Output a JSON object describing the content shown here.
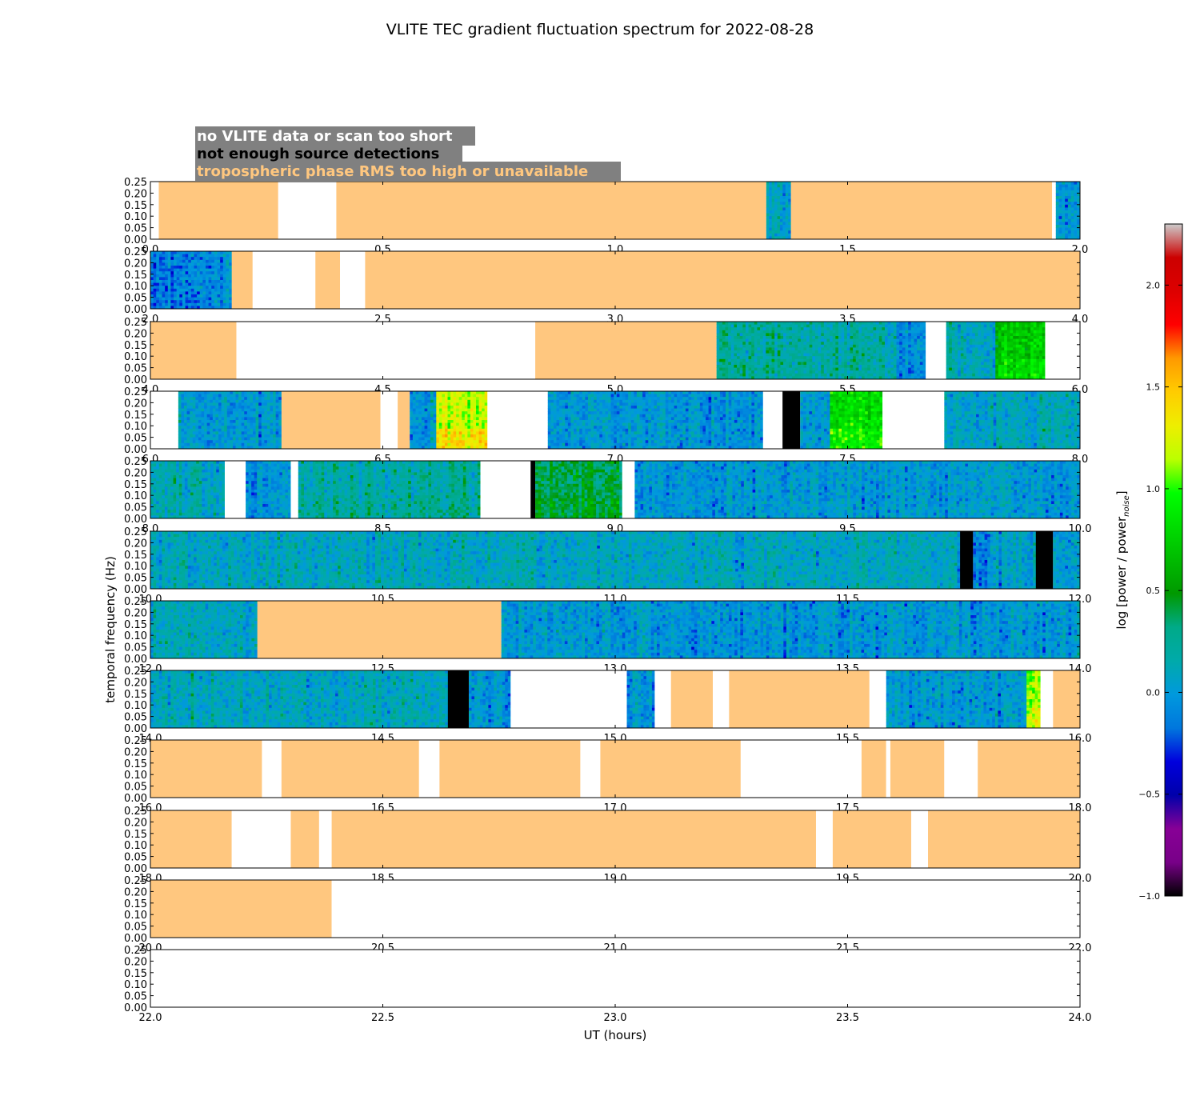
{
  "chart_data": {
    "type": "heatmap",
    "title": "VLITE TEC gradient fluctuation spectrum for 2022-08-28",
    "xlabel": "UT (hours)",
    "ylabel": "temporal frequency (Hz)",
    "ylim": [
      0.0,
      0.25
    ],
    "ytick_labels": [
      "0.00",
      "0.05",
      "0.10",
      "0.15",
      "0.20",
      "0.25"
    ],
    "colorbar": {
      "label": "log [power / power",
      "label_subscript": "noise",
      "label_close": "]",
      "range": [
        -1.0,
        2.3
      ],
      "ticks": [
        -1.0,
        -0.5,
        0.0,
        0.5,
        1.0,
        1.5,
        2.0
      ],
      "tick_labels": [
        "−1.0",
        "−0.5",
        "0.0",
        "0.5",
        "1.0",
        "1.5",
        "2.0"
      ],
      "colormap": "nipy_spectral"
    },
    "legend": {
      "placement": "top-left",
      "background": "#808080",
      "entries": [
        {
          "text": "no VLITE data or scan too short",
          "color": "#ffffff",
          "meaning": "no_data"
        },
        {
          "text": "not enough source detections",
          "color": "#000000",
          "meaning": "few_detections"
        },
        {
          "text": "tropospheric phase RMS too high or unavailable",
          "color": "#ffc77f",
          "meaning": "tropo"
        }
      ]
    },
    "panels": [
      {
        "xlim": [
          0.0,
          2.0
        ],
        "xtick_labels": [
          "0.0",
          "0.5",
          "1.0",
          "1.5",
          "2.0"
        ],
        "segments": [
          {
            "start": 0.0,
            "end": 0.018,
            "status": "no_data"
          },
          {
            "start": 0.018,
            "end": 0.275,
            "status": "tropo"
          },
          {
            "start": 0.275,
            "end": 0.4,
            "status": "no_data"
          },
          {
            "start": 0.4,
            "end": 1.325,
            "status": "tropo"
          },
          {
            "start": 1.325,
            "end": 1.378,
            "status": "data",
            "level": 0.1
          },
          {
            "start": 1.378,
            "end": 1.94,
            "status": "tropo"
          },
          {
            "start": 1.94,
            "end": 1.948,
            "status": "no_data"
          },
          {
            "start": 1.948,
            "end": 2.0,
            "status": "data",
            "level": 0.0
          }
        ]
      },
      {
        "xlim": [
          2.0,
          4.0
        ],
        "xtick_labels": [
          "2.0",
          "2.5",
          "3.0",
          "3.5",
          "4.0"
        ],
        "segments": [
          {
            "start": 2.0,
            "end": 2.175,
            "status": "data",
            "level": -0.1
          },
          {
            "start": 2.175,
            "end": 2.22,
            "status": "tropo"
          },
          {
            "start": 2.22,
            "end": 2.355,
            "status": "no_data"
          },
          {
            "start": 2.355,
            "end": 2.408,
            "status": "tropo"
          },
          {
            "start": 2.408,
            "end": 2.462,
            "status": "no_data"
          },
          {
            "start": 2.462,
            "end": 4.0,
            "status": "tropo"
          }
        ]
      },
      {
        "xlim": [
          4.0,
          6.0
        ],
        "xtick_labels": [
          "4.0",
          "4.5",
          "5.0",
          "5.5",
          "6.0"
        ],
        "segments": [
          {
            "start": 4.0,
            "end": 4.185,
            "status": "tropo"
          },
          {
            "start": 4.185,
            "end": 4.828,
            "status": "no_data"
          },
          {
            "start": 4.828,
            "end": 5.218,
            "status": "tropo"
          },
          {
            "start": 5.218,
            "end": 5.605,
            "status": "data",
            "level": 0.2
          },
          {
            "start": 5.605,
            "end": 5.668,
            "status": "data",
            "level": -0.1
          },
          {
            "start": 5.668,
            "end": 5.712,
            "status": "no_data"
          },
          {
            "start": 5.712,
            "end": 5.818,
            "status": "data",
            "level": 0.1
          },
          {
            "start": 5.818,
            "end": 5.925,
            "status": "data",
            "level": 0.7
          },
          {
            "start": 5.925,
            "end": 6.0,
            "status": "no_data"
          }
        ]
      },
      {
        "xlim": [
          6.0,
          8.0
        ],
        "xtick_labels": [
          "6.0",
          "6.5",
          "7.0",
          "7.5",
          "8.0"
        ],
        "segments": [
          {
            "start": 6.0,
            "end": 6.06,
            "status": "no_data"
          },
          {
            "start": 6.06,
            "end": 6.282,
            "status": "data",
            "level": 0.0
          },
          {
            "start": 6.282,
            "end": 6.495,
            "status": "tropo"
          },
          {
            "start": 6.495,
            "end": 6.532,
            "status": "no_data"
          },
          {
            "start": 6.532,
            "end": 6.558,
            "status": "tropo"
          },
          {
            "start": 6.558,
            "end": 6.615,
            "status": "data",
            "level": 0.0
          },
          {
            "start": 6.615,
            "end": 6.725,
            "status": "data",
            "level": 1.2
          },
          {
            "start": 6.725,
            "end": 6.855,
            "status": "no_data"
          },
          {
            "start": 6.855,
            "end": 7.318,
            "status": "data",
            "level": 0.0
          },
          {
            "start": 7.318,
            "end": 7.36,
            "status": "no_data"
          },
          {
            "start": 7.36,
            "end": 7.398,
            "status": "few_detections"
          },
          {
            "start": 7.398,
            "end": 7.462,
            "status": "data",
            "level": 0.0
          },
          {
            "start": 7.462,
            "end": 7.575,
            "status": "data",
            "level": 0.8
          },
          {
            "start": 7.575,
            "end": 7.708,
            "status": "no_data"
          },
          {
            "start": 7.708,
            "end": 8.0,
            "status": "data",
            "level": 0.1
          }
        ]
      },
      {
        "xlim": [
          8.0,
          10.0
        ],
        "xtick_labels": [
          "8.0",
          "8.5",
          "9.0",
          "9.5",
          "10.0"
        ],
        "segments": [
          {
            "start": 8.0,
            "end": 8.16,
            "status": "data",
            "level": 0.1
          },
          {
            "start": 8.16,
            "end": 8.205,
            "status": "no_data"
          },
          {
            "start": 8.205,
            "end": 8.302,
            "status": "data",
            "level": 0.0
          },
          {
            "start": 8.302,
            "end": 8.318,
            "status": "no_data"
          },
          {
            "start": 8.318,
            "end": 8.71,
            "status": "data",
            "level": 0.2
          },
          {
            "start": 8.71,
            "end": 8.818,
            "status": "no_data"
          },
          {
            "start": 8.818,
            "end": 8.828,
            "status": "few_detections"
          },
          {
            "start": 8.828,
            "end": 9.015,
            "status": "data",
            "level": 0.4
          },
          {
            "start": 9.015,
            "end": 9.042,
            "status": "no_data"
          },
          {
            "start": 9.042,
            "end": 10.0,
            "status": "data",
            "level": 0.0
          }
        ]
      },
      {
        "xlim": [
          10.0,
          12.0
        ],
        "xtick_labels": [
          "10.0",
          "10.5",
          "11.0",
          "11.5",
          "12.0"
        ],
        "segments": [
          {
            "start": 10.0,
            "end": 11.742,
            "status": "data",
            "level": 0.1
          },
          {
            "start": 11.742,
            "end": 11.77,
            "status": "few_detections"
          },
          {
            "start": 11.77,
            "end": 11.905,
            "status": "data",
            "level": 0.0
          },
          {
            "start": 11.905,
            "end": 11.942,
            "status": "few_detections"
          },
          {
            "start": 11.942,
            "end": 12.0,
            "status": "data",
            "level": 0.0
          }
        ]
      },
      {
        "xlim": [
          12.0,
          14.0
        ],
        "xtick_labels": [
          "12.0",
          "12.5",
          "13.0",
          "13.5",
          "14.0"
        ],
        "segments": [
          {
            "start": 12.0,
            "end": 12.23,
            "status": "data",
            "level": 0.1
          },
          {
            "start": 12.23,
            "end": 12.755,
            "status": "tropo"
          },
          {
            "start": 12.755,
            "end": 14.0,
            "status": "data",
            "level": 0.0
          }
        ]
      },
      {
        "xlim": [
          14.0,
          16.0
        ],
        "xtick_labels": [
          "14.0",
          "14.5",
          "15.0",
          "15.5",
          "16.0"
        ],
        "segments": [
          {
            "start": 14.0,
            "end": 14.64,
            "status": "data",
            "level": 0.1
          },
          {
            "start": 14.64,
            "end": 14.685,
            "status": "few_detections"
          },
          {
            "start": 14.685,
            "end": 14.775,
            "status": "data",
            "level": 0.0
          },
          {
            "start": 14.775,
            "end": 15.025,
            "status": "no_data"
          },
          {
            "start": 15.025,
            "end": 15.085,
            "status": "data",
            "level": 0.0
          },
          {
            "start": 15.085,
            "end": 15.12,
            "status": "no_data"
          },
          {
            "start": 15.12,
            "end": 15.21,
            "status": "tropo"
          },
          {
            "start": 15.21,
            "end": 15.245,
            "status": "no_data"
          },
          {
            "start": 15.245,
            "end": 15.547,
            "status": "tropo"
          },
          {
            "start": 15.547,
            "end": 15.583,
            "status": "no_data"
          },
          {
            "start": 15.583,
            "end": 15.885,
            "status": "data",
            "level": 0.0
          },
          {
            "start": 15.885,
            "end": 15.915,
            "status": "data",
            "level": 1.1
          },
          {
            "start": 15.915,
            "end": 15.942,
            "status": "no_data"
          },
          {
            "start": 15.942,
            "end": 16.0,
            "status": "tropo"
          }
        ]
      },
      {
        "xlim": [
          16.0,
          18.0
        ],
        "xtick_labels": [
          "16.0",
          "16.5",
          "17.0",
          "17.5",
          "18.0"
        ],
        "segments": [
          {
            "start": 16.0,
            "end": 16.24,
            "status": "tropo"
          },
          {
            "start": 16.24,
            "end": 16.282,
            "status": "no_data"
          },
          {
            "start": 16.282,
            "end": 16.578,
            "status": "tropo"
          },
          {
            "start": 16.578,
            "end": 16.622,
            "status": "no_data"
          },
          {
            "start": 16.622,
            "end": 16.925,
            "status": "tropo"
          },
          {
            "start": 16.925,
            "end": 16.968,
            "status": "no_data"
          },
          {
            "start": 16.968,
            "end": 17.27,
            "status": "tropo"
          },
          {
            "start": 17.27,
            "end": 17.53,
            "status": "no_data"
          },
          {
            "start": 17.53,
            "end": 17.583,
            "status": "tropo"
          },
          {
            "start": 17.583,
            "end": 17.592,
            "status": "no_data"
          },
          {
            "start": 17.592,
            "end": 17.708,
            "status": "tropo"
          },
          {
            "start": 17.708,
            "end": 17.78,
            "status": "no_data"
          },
          {
            "start": 17.78,
            "end": 18.0,
            "status": "tropo"
          }
        ]
      },
      {
        "xlim": [
          18.0,
          20.0
        ],
        "xtick_labels": [
          "18.0",
          "18.5",
          "19.0",
          "19.5",
          "20.0"
        ],
        "segments": [
          {
            "start": 18.0,
            "end": 18.175,
            "status": "tropo"
          },
          {
            "start": 18.175,
            "end": 18.302,
            "status": "no_data"
          },
          {
            "start": 18.302,
            "end": 18.363,
            "status": "tropo"
          },
          {
            "start": 18.363,
            "end": 18.39,
            "status": "no_data"
          },
          {
            "start": 18.39,
            "end": 19.432,
            "status": "tropo"
          },
          {
            "start": 19.432,
            "end": 19.468,
            "status": "no_data"
          },
          {
            "start": 19.468,
            "end": 19.637,
            "status": "tropo"
          },
          {
            "start": 19.637,
            "end": 19.673,
            "status": "no_data"
          },
          {
            "start": 19.673,
            "end": 20.0,
            "status": "tropo"
          }
        ]
      },
      {
        "xlim": [
          20.0,
          22.0
        ],
        "xtick_labels": [
          "20.0",
          "20.5",
          "21.0",
          "21.5",
          "22.0"
        ],
        "segments": [
          {
            "start": 20.0,
            "end": 20.39,
            "status": "tropo"
          },
          {
            "start": 20.39,
            "end": 22.0,
            "status": "no_data"
          }
        ]
      },
      {
        "xlim": [
          22.0,
          24.0
        ],
        "xtick_labels": [
          "22.0",
          "22.5",
          "23.0",
          "23.5",
          "24.0"
        ],
        "segments": [
          {
            "start": 22.0,
            "end": 24.0,
            "status": "no_data"
          }
        ]
      }
    ]
  }
}
